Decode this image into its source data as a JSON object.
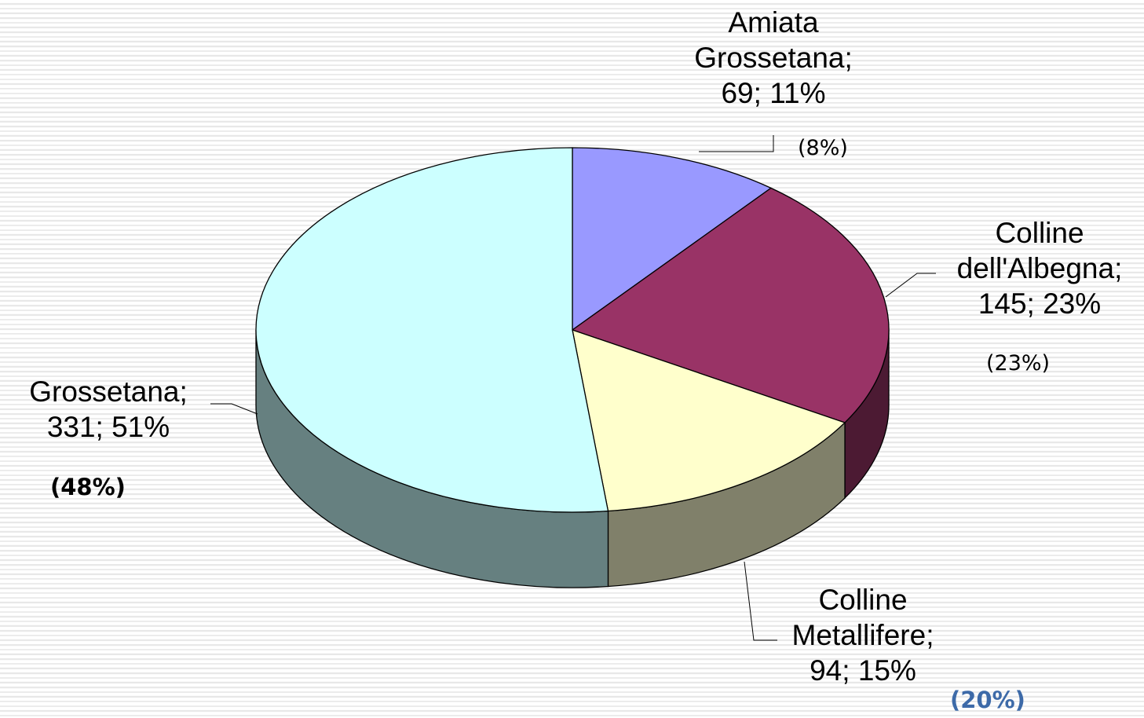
{
  "chart_data": {
    "type": "pie",
    "style": "3d",
    "slices": [
      {
        "name_lines": [
          "Amiata",
          "Grossetana;",
          "69; 11%"
        ],
        "value": 69,
        "percent": 11,
        "note": "(8%)",
        "color": "#9999ff",
        "side_color": "#5c5c99"
      },
      {
        "name_lines": [
          "Colline",
          "dell'Albegna;",
          "145; 23%"
        ],
        "value": 145,
        "percent": 23,
        "note": "(23%)",
        "color": "#993366",
        "side_color": "#4c1a33"
      },
      {
        "name_lines": [
          "Colline",
          "Metallifere;",
          "94; 15%"
        ],
        "value": 94,
        "percent": 15,
        "note": "(20%)",
        "color": "#ffffcc",
        "side_color": "#80806a"
      },
      {
        "name_lines": [
          "Grossetana;",
          "331; 51%"
        ],
        "value": 331,
        "percent": 51,
        "note": "(48%)",
        "color": "#ccffff",
        "side_color": "#668080"
      }
    ]
  }
}
